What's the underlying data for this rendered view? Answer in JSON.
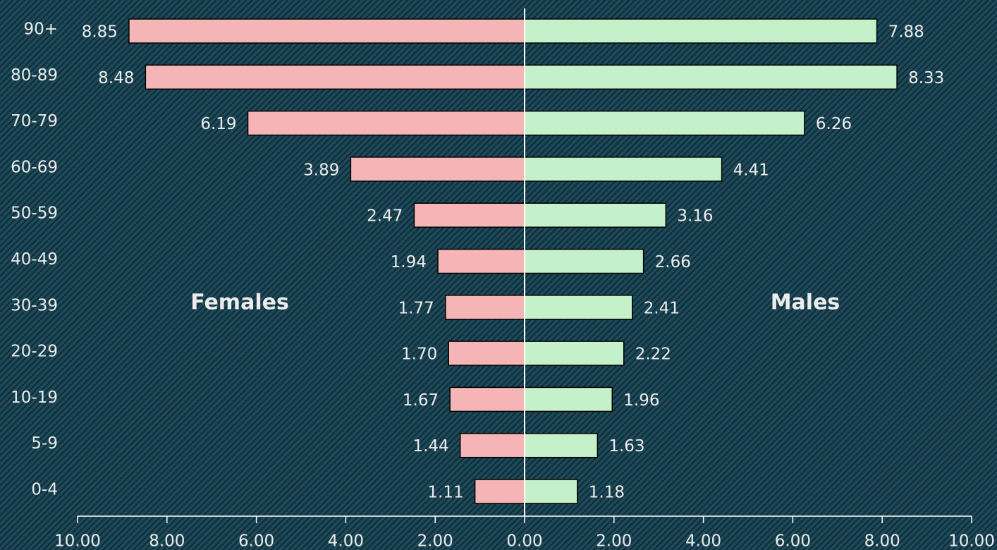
{
  "chart_data": {
    "type": "pyramid",
    "categories": [
      "90+",
      "80-89",
      "70-79",
      "60-69",
      "50-59",
      "40-49",
      "30-39",
      "20-29",
      "10-19",
      "5-9",
      "0-4"
    ],
    "series": [
      {
        "name": "Females",
        "side": "left",
        "color": "#f5b5b7",
        "values": [
          8.85,
          8.48,
          6.19,
          3.89,
          2.47,
          1.94,
          1.77,
          1.7,
          1.67,
          1.44,
          1.11
        ],
        "value_labels": [
          "8.85",
          "8.48",
          "6.19",
          "3.89",
          "2.47",
          "1.94",
          "1.77",
          "1.70",
          "1.67",
          "1.44",
          "1.11"
        ]
      },
      {
        "name": "Males",
        "side": "right",
        "color": "#c4f1c9",
        "values": [
          7.88,
          8.33,
          6.26,
          4.41,
          3.16,
          2.66,
          2.41,
          2.22,
          1.96,
          1.63,
          1.18
        ]
      }
    ],
    "xlim": [
      -10,
      10
    ],
    "xticks": [
      {
        "value": -10,
        "label": "10.00"
      },
      {
        "value": -8,
        "label": "8.00"
      },
      {
        "value": -6,
        "label": "6.00"
      },
      {
        "value": -4,
        "label": "4.00"
      },
      {
        "value": -2,
        "label": "2.00"
      },
      {
        "value": 0,
        "label": "0.00"
      },
      {
        "value": 2,
        "label": "2.00"
      },
      {
        "value": 4,
        "label": "4.00"
      },
      {
        "value": 6,
        "label": "6.00"
      },
      {
        "value": 8,
        "label": "8.00"
      },
      {
        "value": 10,
        "label": "10.00"
      }
    ]
  }
}
